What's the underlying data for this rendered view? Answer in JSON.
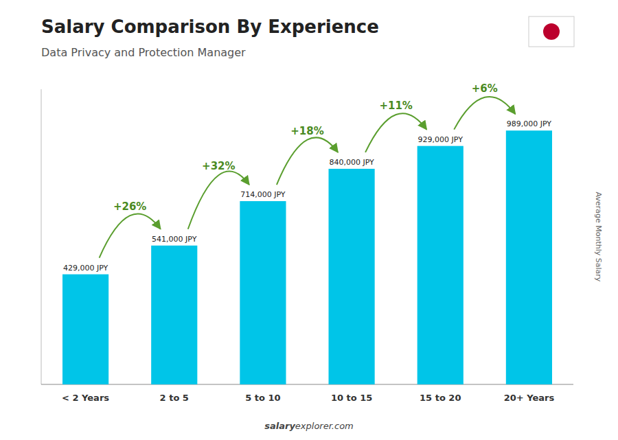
{
  "chart_data": {
    "type": "bar",
    "title": "Salary Comparison By Experience",
    "subtitle": "Data Privacy and Protection Manager",
    "ylabel": "Average Monthly Salary",
    "source_bold": "salary",
    "source_regular": "explorer.com",
    "categories": [
      "< 2 Years",
      "2 to 5",
      "5 to 10",
      "10 to 15",
      "15 to 20",
      "20+ Years"
    ],
    "values": [
      429000,
      541000,
      714000,
      840000,
      929000,
      989000
    ],
    "value_labels": [
      "429,000 JPY",
      "541,000 JPY",
      "714,000 JPY",
      "840,000 JPY",
      "929,000 JPY",
      "989,000 JPY"
    ],
    "annotations": [
      "+26%",
      "+32%",
      "+18%",
      "+11%",
      "+6%"
    ],
    "color": "#00c5e8",
    "ylim": [
      0,
      1150000
    ],
    "data_labels": true,
    "tick_labels": "x",
    "grid": false
  }
}
